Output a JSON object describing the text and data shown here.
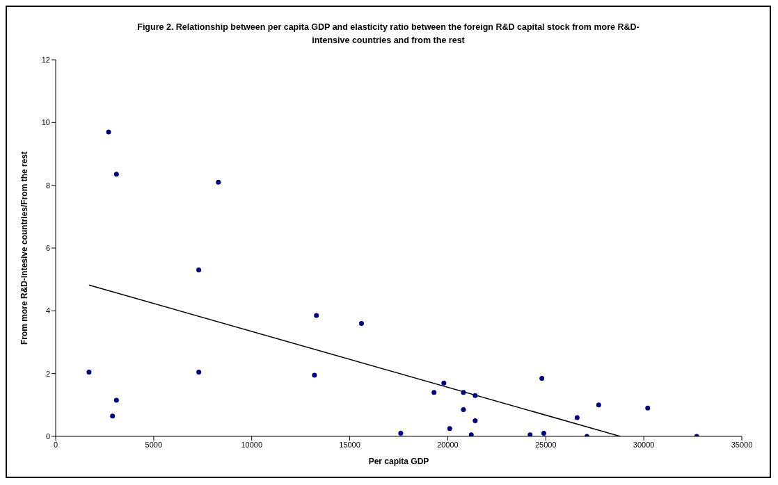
{
  "chart_data": {
    "type": "scatter",
    "title": "Figure 2. Relationship between per capita GDP and elasticity ratio between the foreign R&D capital stock from more R&D-intensive countries and from the rest",
    "xlabel": "Per capita GDP",
    "ylabel": "From more R&D-intesive countries/From the rest",
    "xlim": [
      0,
      35000
    ],
    "xticks": [
      0,
      5000,
      10000,
      15000,
      20000,
      25000,
      30000,
      35000
    ],
    "ylim": [
      0,
      12
    ],
    "yticks": [
      0,
      2,
      4,
      6,
      8,
      10,
      12
    ],
    "grid": false,
    "legend": false,
    "marker": "circle",
    "series": [
      {
        "color": "#000080",
        "x": [
          2700,
          3100,
          8300,
          7300,
          1700,
          7300,
          3100,
          2900,
          13300,
          15600,
          13200,
          17600,
          19300,
          19800,
          20800,
          21400,
          20800,
          21400,
          20100,
          21200,
          24200,
          24900,
          24800,
          26600,
          27100,
          27700,
          30200,
          32700
        ],
        "values": [
          9.7,
          8.35,
          8.1,
          5.3,
          2.05,
          2.05,
          1.15,
          0.65,
          3.85,
          3.6,
          1.95,
          0.1,
          1.4,
          1.7,
          1.4,
          1.3,
          0.85,
          0.5,
          0.25,
          0.05,
          0.05,
          0.1,
          1.85,
          0.6,
          0.0,
          1.0,
          0.9,
          0.0
        ]
      },
      {
        "type": "line",
        "color": "#000000",
        "x": [
          1700,
          28800
        ],
        "values": [
          4.82,
          0
        ],
        "line_style": "solid",
        "marker": "none"
      }
    ]
  }
}
